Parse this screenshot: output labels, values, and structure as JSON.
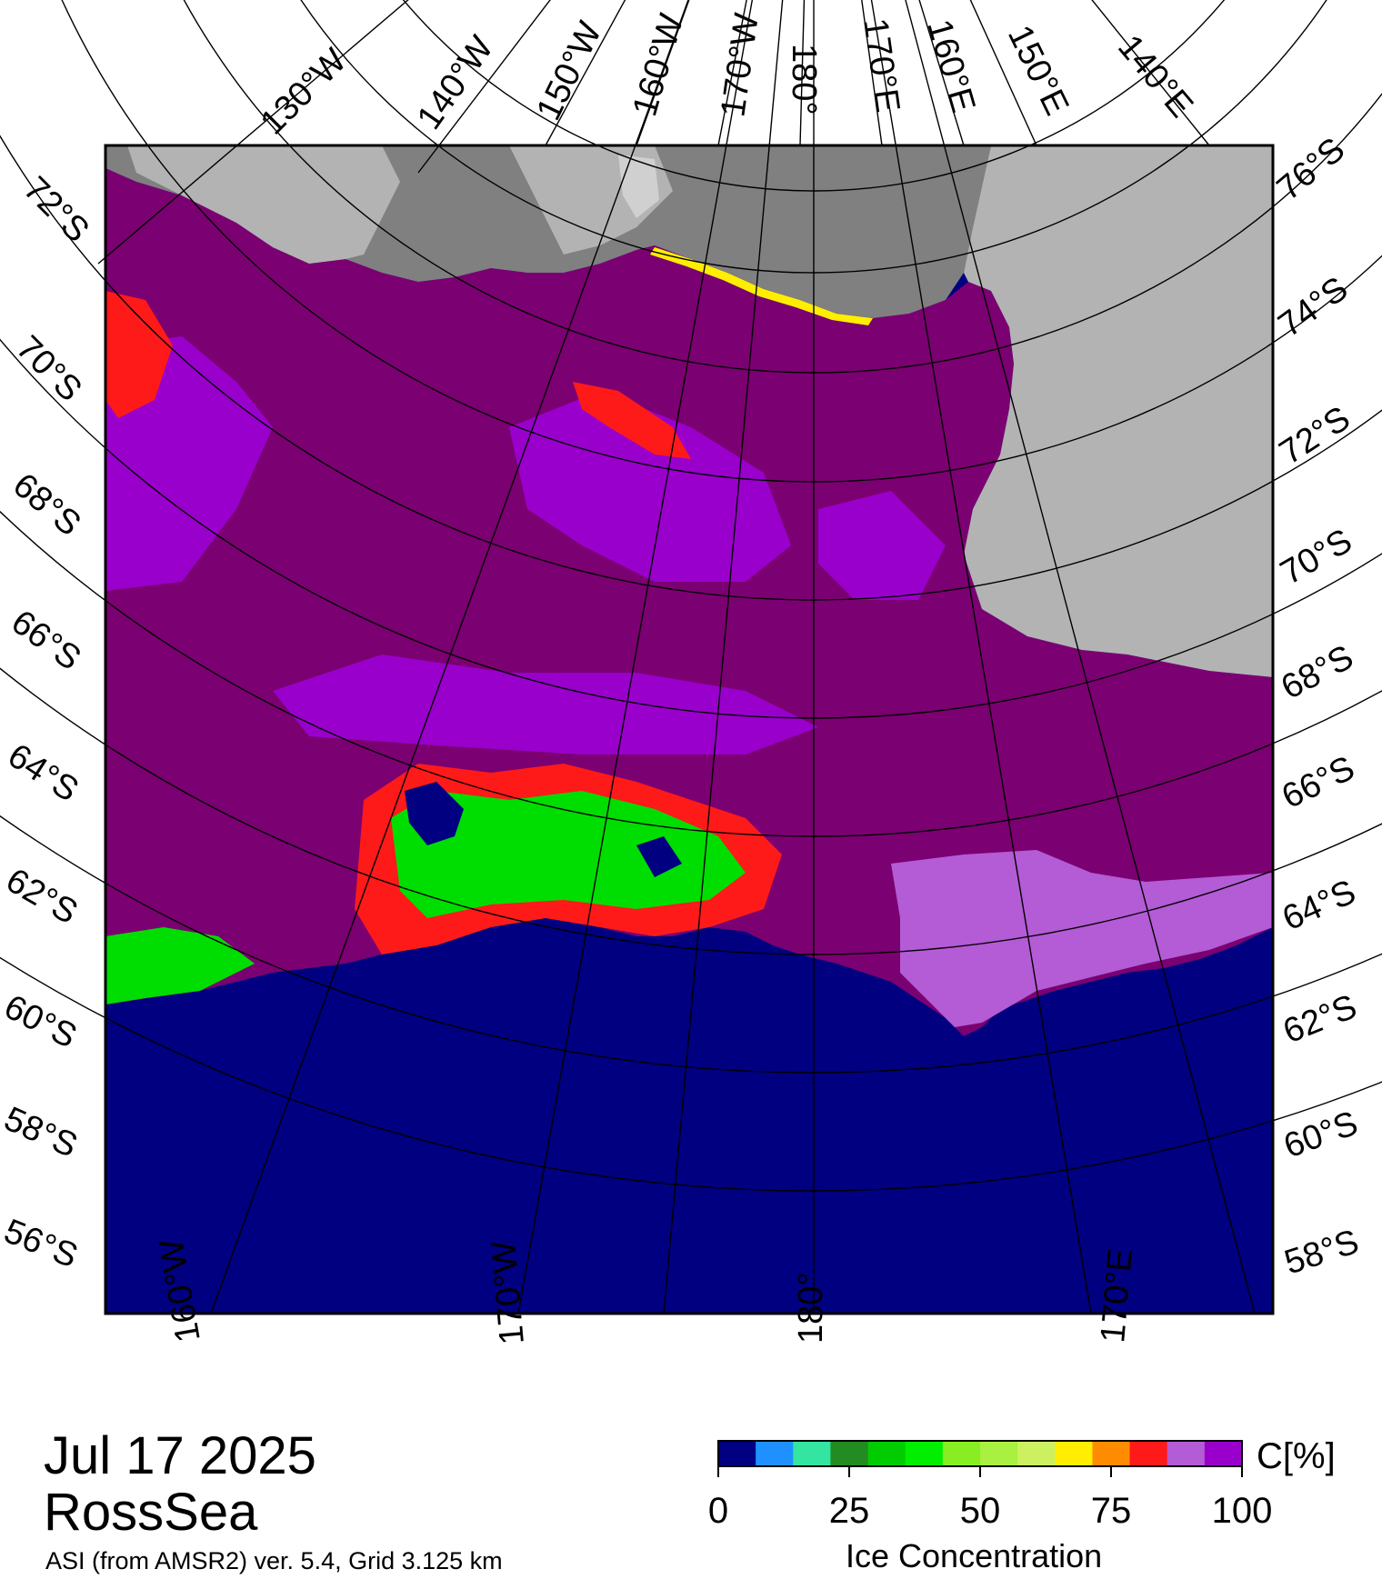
{
  "map": {
    "colors": {
      "ocean": "#000080",
      "land_dark": "#808080",
      "land_light": "#b3b3b3",
      "land_lighter": "#d0d0d0",
      "ice_high": "#7b0071",
      "ice_mid": "#9900cc",
      "ice_lilac": "#b45bd6",
      "ice_red": "#ff1a1a",
      "ice_yellow": "#ffee00",
      "ice_green": "#00dd00",
      "ice_cyan": "#22ccaa",
      "frame": "#000000"
    },
    "meridian_labels_top": [
      "130°W",
      "140°W",
      "150°W",
      "160°W",
      "170°W",
      "180°",
      "170°E",
      "160°E",
      "150°E",
      "140°E"
    ],
    "latitude_labels_left": [
      "72°S",
      "70°S",
      "68°S",
      "66°S",
      "64°S",
      "62°S",
      "60°S",
      "58°S",
      "56°S"
    ],
    "latitude_labels_right": [
      "76°S",
      "74°S",
      "72°S",
      "70°S",
      "68°S",
      "66°S",
      "64°S",
      "62°S",
      "60°S",
      "58°S"
    ],
    "meridian_labels_bottom": [
      "160°W",
      "170°W",
      "180°",
      "170°E"
    ]
  },
  "footer": {
    "date": "Jul 17 2025",
    "region": "RossSea",
    "product": "ASI (from AMSR2) ver. 5.4,  Grid 3.125 km"
  },
  "legend": {
    "title": "Ice Concentration",
    "unit": "C[%]",
    "ticks": [
      "0",
      "25",
      "50",
      "75",
      "100"
    ],
    "colors": [
      "#000080",
      "#1e90ff",
      "#33e5a0",
      "#228b22",
      "#00cc00",
      "#00ee00",
      "#88ee22",
      "#aaf040",
      "#ccf060",
      "#ffee00",
      "#ff8c00",
      "#ff1a1a",
      "#b45bd6",
      "#9900cc"
    ]
  }
}
